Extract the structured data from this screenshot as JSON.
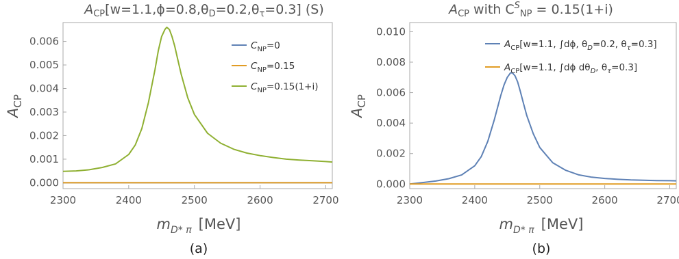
{
  "chart_data": [
    {
      "id": "a",
      "type": "line",
      "title_sym": "A",
      "title_sub": "CP",
      "title_rest": "[w=1.1,ϕ=0.8,θ",
      "title_sub2": "D",
      "title_rest2": "=0.2,θ",
      "title_sub3": "τ",
      "title_rest3": "=0.3] (S)",
      "ylabel_sym": "A",
      "ylabel_sub": "CP",
      "xlabel_sym": "m",
      "xlabel_sub": "D* π",
      "xlabel_unit": "[MeV]",
      "caption": "(a)",
      "xlim": [
        2300,
        2710
      ],
      "ylim": [
        -0.00025,
        0.0068
      ],
      "xticks": [
        2300,
        2400,
        2500,
        2600,
        2700
      ],
      "xtick_labels": [
        "2300",
        "2400",
        "2500",
        "2600",
        "2700"
      ],
      "yticks": [
        0,
        0.001,
        0.002,
        0.003,
        0.004,
        0.005,
        0.006
      ],
      "ytick_labels": [
        "0.000",
        "0.001",
        "0.002",
        "0.003",
        "0.004",
        "0.005",
        "0.006"
      ],
      "legend_position": "top-right",
      "colors": {
        "blue": "#5e81b5",
        "orange": "#e19c24",
        "green": "#8fb032"
      },
      "series": [
        {
          "name_sym": "C",
          "name_sub": "NP",
          "name_rest": "=0",
          "color": "#5e81b5",
          "x": [
            2300,
            2710
          ],
          "y": [
            0,
            0
          ]
        },
        {
          "name_sym": "C",
          "name_sub": "NP",
          "name_rest": "=0.15",
          "color": "#e19c24",
          "x": [
            2300,
            2710
          ],
          "y": [
            0,
            0
          ]
        },
        {
          "name_sym": "C",
          "name_sub": "NP",
          "name_rest": "=0.15(1+i)",
          "color": "#8fb032",
          "x": [
            2300,
            2320,
            2340,
            2360,
            2380,
            2400,
            2410,
            2420,
            2430,
            2440,
            2445,
            2450,
            2455,
            2458,
            2462,
            2466,
            2470,
            2475,
            2480,
            2490,
            2500,
            2520,
            2540,
            2560,
            2580,
            2600,
            2620,
            2640,
            2660,
            2680,
            2700,
            2710
          ],
          "y": [
            0.00048,
            0.0005,
            0.00055,
            0.00065,
            0.0008,
            0.0012,
            0.0016,
            0.0023,
            0.0034,
            0.0048,
            0.0056,
            0.0062,
            0.0065,
            0.0066,
            0.0065,
            0.0062,
            0.0058,
            0.0052,
            0.0046,
            0.0036,
            0.0029,
            0.0021,
            0.00168,
            0.00142,
            0.00126,
            0.00115,
            0.00107,
            0.001,
            0.00096,
            0.00093,
            0.0009,
            0.00088
          ]
        }
      ]
    },
    {
      "id": "b",
      "type": "line",
      "title_sym": "A",
      "title_sub": "CP",
      "title_rest": " with C",
      "title_sup": "S",
      "title_sub2": "NP",
      "title_rest2": " = 0.15(1+i)",
      "ylabel_sym": "A",
      "ylabel_sub": "CP",
      "xlabel_sym": "m",
      "xlabel_sub": "D* π",
      "xlabel_unit": "[MeV]",
      "caption": "(b)",
      "xlim": [
        2300,
        2710
      ],
      "ylim": [
        -0.0003,
        0.0106
      ],
      "xticks": [
        2300,
        2400,
        2500,
        2600,
        2700
      ],
      "xtick_labels": [
        "2300",
        "2400",
        "2500",
        "2600",
        "2700"
      ],
      "yticks": [
        0,
        0.002,
        0.004,
        0.006,
        0.008,
        0.01
      ],
      "ytick_labels": [
        "0.000",
        "0.002",
        "0.004",
        "0.006",
        "0.008",
        "0.010"
      ],
      "legend_position": "top-right",
      "colors": {
        "blue": "#5e81b5",
        "orange": "#e19c24"
      },
      "series": [
        {
          "name_sym": "A",
          "name_sub": "CP",
          "name_rest": "[w=1.1, ∫dϕ, θ",
          "name_sub2": "D",
          "name_rest2": "=0.2, θ",
          "name_sub3": "τ",
          "name_rest3": "=0.3]",
          "color": "#5e81b5",
          "x": [
            2300,
            2320,
            2340,
            2360,
            2380,
            2400,
            2410,
            2420,
            2430,
            2440,
            2445,
            2450,
            2455,
            2458,
            2462,
            2466,
            2470,
            2475,
            2480,
            2490,
            2500,
            2520,
            2540,
            2560,
            2580,
            2600,
            2620,
            2640,
            2660,
            2680,
            2700,
            2710
          ],
          "y": [
            0.0,
            0.0001,
            0.0002,
            0.00035,
            0.0006,
            0.0012,
            0.0018,
            0.0028,
            0.0042,
            0.0058,
            0.0065,
            0.007,
            0.0073,
            0.0073,
            0.0071,
            0.0067,
            0.0061,
            0.0053,
            0.0045,
            0.0033,
            0.0024,
            0.0014,
            0.0009,
            0.0006,
            0.00045,
            0.00037,
            0.00031,
            0.00027,
            0.00025,
            0.00023,
            0.00022,
            0.00021
          ]
        },
        {
          "name_sym": "A",
          "name_sub": "CP",
          "name_rest": "[w=1.1, ∫dϕ dθ",
          "name_sub2": "D",
          "name_rest2": ", θ",
          "name_sub3": "τ",
          "name_rest3": "=0.3]",
          "color": "#e19c24",
          "x": [
            2300,
            2710
          ],
          "y": [
            0,
            0
          ]
        }
      ]
    }
  ]
}
